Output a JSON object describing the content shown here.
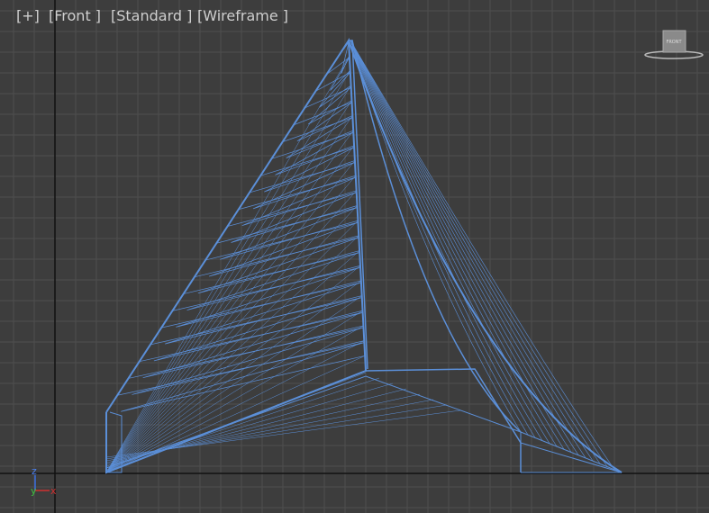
{
  "viewport": {
    "labels": [
      "[+]",
      "[Front ]",
      "[Standard ]",
      "[Wireframe ]"
    ],
    "viewcube": "FRONT",
    "axes": {
      "z": "z",
      "y": "y",
      "x": "x"
    }
  }
}
